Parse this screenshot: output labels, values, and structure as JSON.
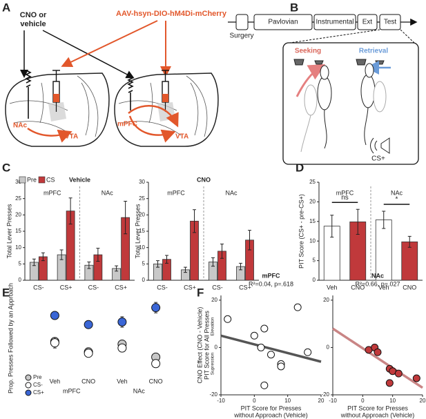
{
  "panel_labels": [
    "A",
    "B",
    "C",
    "D",
    "E",
    "F"
  ],
  "panel_a": {
    "injection_1": [
      "CNO or",
      "vehicle"
    ],
    "injection_2": "AAV-hsyn-DIO-hM4Di-mCherry",
    "brain_1": [
      "NAc",
      "VTA"
    ],
    "brain_2": [
      "mPFC",
      "VTA"
    ]
  },
  "panel_b": {
    "phases": [
      "Surgery",
      "Pavlovian",
      "Instrumental",
      "Ext",
      "Test"
    ],
    "conditions": [
      "Seeking",
      "Retrieval"
    ],
    "cue": "CS+"
  },
  "chart_data": [
    {
      "type": "bar",
      "title": "Vehicle",
      "ylabel": "Total Lever Presses",
      "groups": [
        "mPFC",
        "NAc"
      ],
      "categories": [
        "CS-",
        "CS+",
        "CS-",
        "CS+"
      ],
      "series": [
        {
          "name": "Pre",
          "color": "#c8c8c8",
          "values": [
            5.5,
            7.8,
            4.6,
            3.6
          ],
          "errors": [
            1,
            1.5,
            1,
            0.8
          ]
        },
        {
          "name": "CS",
          "color": "#c0393b",
          "values": [
            7.2,
            21.2,
            7.8,
            19.2
          ],
          "errors": [
            1.2,
            4,
            2,
            5
          ]
        }
      ],
      "ylim": [
        0,
        30
      ],
      "yticks": [
        0,
        5,
        10,
        15,
        20,
        25,
        30
      ]
    },
    {
      "type": "bar",
      "title": "CNO",
      "ylabel": "Total Lever Presses",
      "groups": [
        "mPFC",
        "NAc"
      ],
      "categories": [
        "CS-",
        "CS+",
        "CS-",
        "CS+"
      ],
      "series": [
        {
          "color": "#c8c8c8",
          "values": [
            5,
            3.2,
            5.6,
            4.2
          ],
          "errors": [
            1,
            0.8,
            1.3,
            1
          ]
        },
        {
          "color": "#c0393b",
          "values": [
            6.4,
            18.1,
            8.9,
            12.3
          ],
          "errors": [
            1.2,
            3.5,
            2.2,
            3
          ]
        }
      ],
      "ylim": [
        0,
        30
      ],
      "yticks": [
        0,
        5,
        10,
        15,
        20,
        25,
        30
      ]
    },
    {
      "type": "bar",
      "ylabel": "PIT Score (CS+ - pre-CS+)",
      "groups": [
        "mPFC",
        "NAc"
      ],
      "categories": [
        "Veh",
        "CNO",
        "Veh",
        "CNO"
      ],
      "values": [
        13.8,
        14.9,
        15.4,
        9.8
      ],
      "errors": [
        2.8,
        3.2,
        2.2,
        1.4
      ],
      "colors": [
        "#ffffff",
        "#c0393b",
        "#ffffff",
        "#c0393b"
      ],
      "significance": [
        "ns",
        "*"
      ],
      "ylim": [
        0,
        25
      ],
      "yticks": [
        0,
        5,
        10,
        15,
        20,
        25
      ]
    },
    {
      "type": "dot",
      "ylabel": "Prop. Presses Followed by an Approach",
      "groups": [
        "mPFC",
        "NAc"
      ],
      "categories": [
        "Veh",
        "CNO",
        "Veh",
        "CNO"
      ],
      "series": [
        {
          "name": "Pre",
          "color": "#c8c8c8",
          "values": [
            0.24,
            0.16,
            0.22,
            0.12
          ],
          "errors": [
            0.03,
            0.03,
            0.03,
            0.03
          ]
        },
        {
          "name": "CS-",
          "color": "#ffffff",
          "values": [
            0.23,
            0.15,
            0.19,
            0.07
          ],
          "errors": [
            0.04,
            0.03,
            0.03,
            0.03
          ]
        },
        {
          "name": "CS+",
          "color": "#3a66d6",
          "values": [
            0.44,
            0.37,
            0.39,
            0.5
          ],
          "errors": [
            0.03,
            0.03,
            0.04,
            0.04
          ]
        }
      ],
      "legend": "lower left",
      "ylim": [
        0,
        0.53
      ]
    },
    {
      "type": "scatter",
      "title": "mPFC",
      "annotation": "R²=0.04, p=.618",
      "ylabel": [
        "CNO Effect (CNO - Vehicle)",
        "PIT Score for All Presses"
      ],
      "y_annotations": [
        "Elevation",
        "Supression"
      ],
      "xlabel": [
        "PIT Score for Presses",
        "without Approach (Vehicle)"
      ],
      "x": [
        -8,
        0,
        3,
        2,
        5,
        8,
        8,
        3,
        13,
        16
      ],
      "y": [
        12,
        5,
        8,
        0,
        -3,
        -7,
        -8,
        -16,
        17,
        -2
      ],
      "color": "#ffffff",
      "fit": {
        "x": [
          -10,
          20
        ],
        "y": [
          5,
          -6
        ],
        "color": "#555555"
      },
      "xlim": [
        -10,
        20
      ],
      "xticks": [
        -10,
        0,
        10,
        20
      ],
      "ylim": [
        -20,
        22
      ],
      "yticks": [
        -20,
        0,
        20
      ]
    },
    {
      "type": "scatter",
      "title": "NAc",
      "annotation": "R²=0.66, p=.027",
      "xlabel": [
        "PIT Score for Presses",
        "without Approach (Vehicle)"
      ],
      "x": [
        2,
        4,
        5,
        9,
        9,
        10,
        12,
        18
      ],
      "y": [
        -1,
        0,
        -2,
        -9,
        -15,
        -10,
        -11,
        -13
      ],
      "color": "#c0393b",
      "fit": {
        "x": [
          -10,
          20
        ],
        "y": [
          8,
          -17
        ],
        "color": "#c98585"
      },
      "xlim": [
        -10,
        20
      ],
      "xticks": [
        -10,
        0,
        10,
        20
      ],
      "ylim": [
        -20,
        22
      ],
      "yticks": [
        -20,
        0,
        20
      ]
    }
  ]
}
